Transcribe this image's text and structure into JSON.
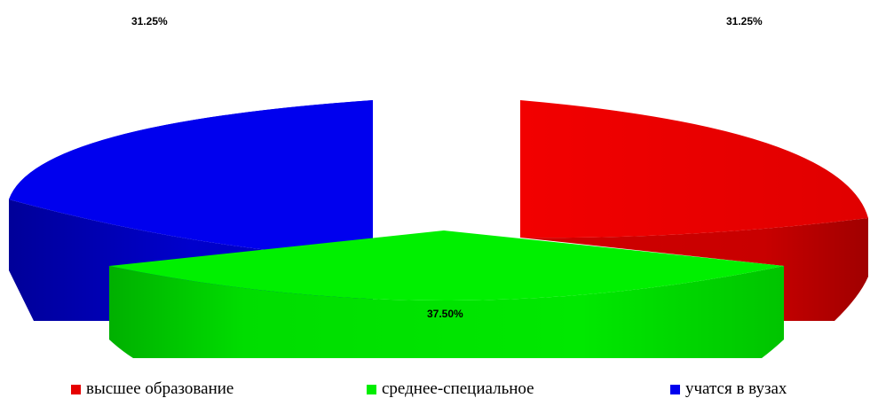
{
  "chart_data": {
    "type": "pie",
    "variant": "3d-exploded",
    "title": "",
    "slices": [
      {
        "label": "высшее образование",
        "value": 31.25,
        "display": "31.25%",
        "color": "#e60000"
      },
      {
        "label": "среднее-специальное",
        "value": 37.5,
        "display": "37.50%",
        "color": "#00ee00"
      },
      {
        "label": "учатся в вузах",
        "value": 31.25,
        "display": "31.25%",
        "color": "#0000ee"
      }
    ],
    "legend": {
      "placement": "bottom",
      "items": [
        {
          "label": "высшее образование",
          "color": "#e60000"
        },
        {
          "label": "среднее-специальное",
          "color": "#00ee00"
        },
        {
          "label": "учатся в вузах",
          "color": "#0000ee"
        }
      ]
    }
  }
}
